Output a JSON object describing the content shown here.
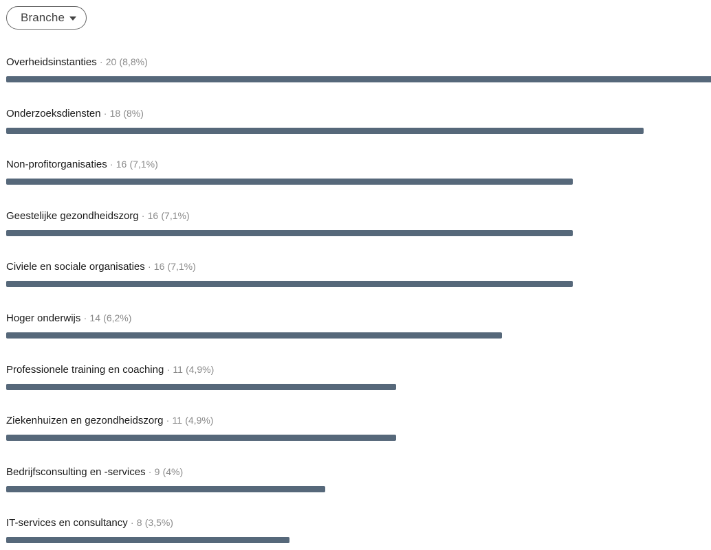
{
  "filter": {
    "label": "Branche",
    "icon": "caret-down-icon"
  },
  "colors": {
    "bar": "#56687a",
    "muted_text": "#8a8a8a"
  },
  "chart_data": {
    "type": "bar",
    "orientation": "horizontal",
    "title": "",
    "categories": [
      "Overheidsinstanties",
      "Onderzoeksdiensten",
      "Non-profitorganisaties",
      "Geestelijke gezondheidszorg",
      "Civiele en sociale organisaties",
      "Hoger onderwijs",
      "Professionele training en coaching",
      "Ziekenhuizen en gezondheidszorg",
      "Bedrijfsconsulting en -services",
      "IT-services en consultancy"
    ],
    "values": [
      20,
      18,
      16,
      16,
      16,
      14,
      11,
      11,
      9,
      8
    ],
    "percent_labels": [
      "(8,8%)",
      "(8%)",
      "(7,1%)",
      "(7,1%)",
      "(7,1%)",
      "(6,2%)",
      "(4,9%)",
      "(4,9%)",
      "(4%)",
      "(3,5%)"
    ],
    "separator": "·",
    "xlim": [
      0,
      20
    ]
  }
}
